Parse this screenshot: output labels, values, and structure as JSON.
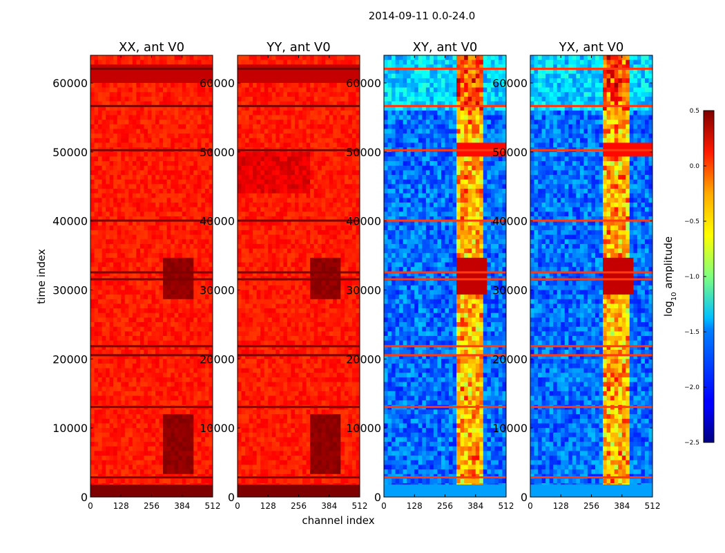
{
  "chart_data": {
    "type": "heatmap",
    "suptitle": "2014-09-11 0.0-24.0",
    "xlabel": "channel index",
    "ylabel": "time index",
    "xlim": [
      0,
      512
    ],
    "ylim": [
      0,
      64000
    ],
    "x_ticks": [
      0,
      128,
      256,
      384,
      512
    ],
    "y_ticks": [
      0,
      10000,
      20000,
      30000,
      40000,
      50000,
      60000
    ],
    "panels": [
      {
        "title": "XX, ant V0",
        "level": 0.05
      },
      {
        "title": "YY, ant V0",
        "level": 0.05
      },
      {
        "title": "XY, ant V0",
        "level": -1.8
      },
      {
        "title": "YX, ant V0",
        "level": -1.8
      }
    ],
    "colorbar": {
      "label_main": "log",
      "label_sub": "10",
      "label_tail": " amplitude",
      "range": [
        -2.5,
        0.5
      ],
      "ticks": [
        "0.5",
        "0.0",
        "−0.5",
        "−1.0",
        "−1.5",
        "−2.0",
        "−2.5"
      ],
      "colormap": "jet"
    }
  }
}
